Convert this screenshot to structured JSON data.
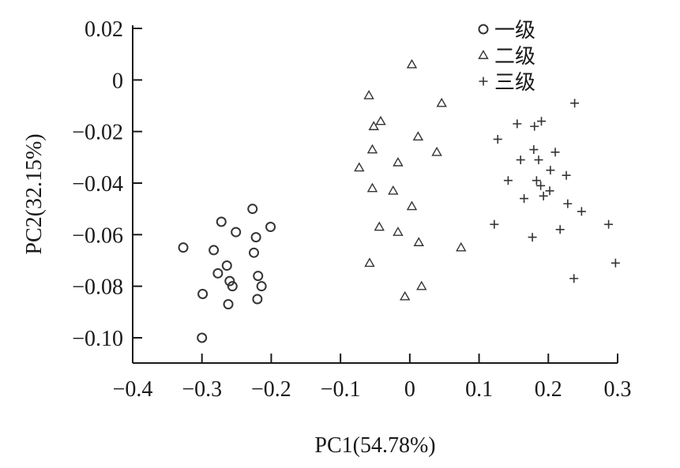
{
  "chart_data": {
    "type": "scatter",
    "title": "",
    "xlabel": "PC1(54.78%)",
    "ylabel": "PC2(32.15%)",
    "xlim": [
      -0.4,
      0.3
    ],
    "ylim": [
      -0.11,
      0.02
    ],
    "xticks": [
      -0.4,
      -0.3,
      -0.2,
      -0.1,
      0,
      0.1,
      0.2,
      0.3
    ],
    "xtick_labels": [
      "−0.4",
      "−0.3",
      "−0.2",
      "−0.1",
      "0",
      "0.1",
      "0.2",
      "0.3"
    ],
    "yticks": [
      0.02,
      0,
      -0.02,
      -0.04,
      -0.06,
      -0.08,
      -0.1
    ],
    "ytick_labels": [
      "0.02",
      "0",
      "−0.02",
      "−0.04",
      "−0.06",
      "−0.08",
      "−0.10"
    ],
    "grid": false,
    "legend_position": "top-right",
    "series": [
      {
        "name": "一级",
        "marker": "circle",
        "points": [
          [
            -0.327,
            -0.065
          ],
          [
            -0.283,
            -0.066
          ],
          [
            -0.277,
            -0.075
          ],
          [
            -0.272,
            -0.055
          ],
          [
            -0.264,
            -0.072
          ],
          [
            -0.26,
            -0.078
          ],
          [
            -0.256,
            -0.08
          ],
          [
            -0.251,
            -0.059
          ],
          [
            -0.299,
            -0.083
          ],
          [
            -0.262,
            -0.087
          ],
          [
            -0.3,
            -0.1
          ],
          [
            -0.227,
            -0.05
          ],
          [
            -0.225,
            -0.067
          ],
          [
            -0.222,
            -0.061
          ],
          [
            -0.219,
            -0.076
          ],
          [
            -0.214,
            -0.08
          ],
          [
            -0.22,
            -0.085
          ],
          [
            -0.201,
            -0.057
          ]
        ]
      },
      {
        "name": "二级",
        "marker": "triangle",
        "points": [
          [
            0.003,
            0.006
          ],
          [
            -0.059,
            -0.006
          ],
          [
            0.046,
            -0.009
          ],
          [
            -0.042,
            -0.016
          ],
          [
            -0.052,
            -0.018
          ],
          [
            0.012,
            -0.022
          ],
          [
            -0.054,
            -0.027
          ],
          [
            0.039,
            -0.028
          ],
          [
            -0.017,
            -0.032
          ],
          [
            -0.073,
            -0.034
          ],
          [
            -0.054,
            -0.042
          ],
          [
            -0.024,
            -0.043
          ],
          [
            0.003,
            -0.049
          ],
          [
            -0.044,
            -0.057
          ],
          [
            -0.017,
            -0.059
          ],
          [
            0.013,
            -0.063
          ],
          [
            0.074,
            -0.065
          ],
          [
            -0.058,
            -0.071
          ],
          [
            0.017,
            -0.08
          ],
          [
            -0.007,
            -0.084
          ]
        ]
      },
      {
        "name": "三级",
        "marker": "plus",
        "points": [
          [
            0.238,
            -0.009
          ],
          [
            0.155,
            -0.017
          ],
          [
            0.19,
            -0.016
          ],
          [
            0.18,
            -0.018
          ],
          [
            0.127,
            -0.023
          ],
          [
            0.179,
            -0.027
          ],
          [
            0.21,
            -0.028
          ],
          [
            0.16,
            -0.031
          ],
          [
            0.186,
            -0.031
          ],
          [
            0.203,
            -0.035
          ],
          [
            0.226,
            -0.037
          ],
          [
            0.142,
            -0.039
          ],
          [
            0.183,
            -0.039
          ],
          [
            0.189,
            -0.041
          ],
          [
            0.202,
            -0.043
          ],
          [
            0.165,
            -0.046
          ],
          [
            0.193,
            -0.045
          ],
          [
            0.228,
            -0.048
          ],
          [
            0.248,
            -0.051
          ],
          [
            0.122,
            -0.056
          ],
          [
            0.287,
            -0.056
          ],
          [
            0.217,
            -0.058
          ],
          [
            0.177,
            -0.061
          ],
          [
            0.297,
            -0.071
          ],
          [
            0.237,
            -0.077
          ]
        ]
      }
    ]
  }
}
